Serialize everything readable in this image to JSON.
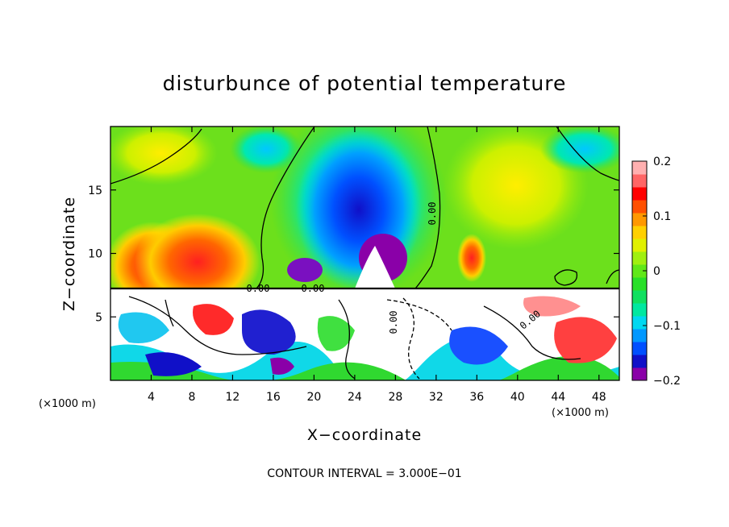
{
  "chart_data": {
    "type": "heatmap",
    "title": "disturbunce of potential temperature",
    "xlabel": "X−coordinate",
    "ylabel": "Z−coordinate",
    "x_unit": "(×1000 m)",
    "x_unit_right": "(×1000 m)",
    "xlim": [
      0,
      50
    ],
    "ylim": [
      0,
      20
    ],
    "x_ticks": [
      4,
      8,
      12,
      16,
      20,
      24,
      28,
      32,
      36,
      40,
      44,
      48
    ],
    "y_ticks": [
      5,
      10,
      15
    ],
    "colorbar": {
      "min": -0.2,
      "max": 0.2,
      "ticks": [
        0.2,
        0.1,
        0,
        -0.1,
        -0.2
      ],
      "tick_labels": [
        "0.2",
        "0.1",
        "0",
        "−0.1",
        "−0.2"
      ],
      "colors": [
        "#8a00a8",
        "#1010c8",
        "#0050ff",
        "#0098ff",
        "#00d8f0",
        "#00e8a0",
        "#10e060",
        "#28e028",
        "#60e818",
        "#a0f010",
        "#e0f000",
        "#ffd000",
        "#ff9800",
        "#ff5000",
        "#ff0000",
        "#ff6666",
        "#ffb0b0"
      ]
    },
    "contour_interval": "CONTOUR INTERVAL = 3.000E−01",
    "contour_labels": [
      "0.00",
      "0.00",
      "0.00",
      "0.00",
      "0.00"
    ],
    "interface_height": 7.3
  },
  "colors": {
    "background": "#ffffff",
    "frame": "#000000"
  }
}
